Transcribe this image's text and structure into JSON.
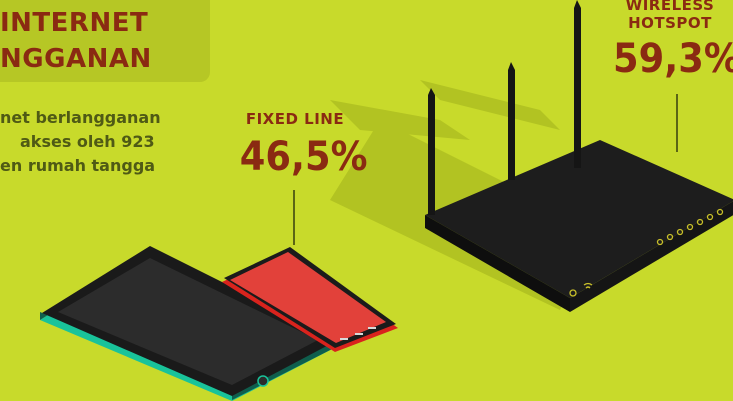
{
  "title": {
    "line1": "INTERNET",
    "line2": "NGGANAN"
  },
  "description": {
    "line1": "net berlangganan",
    "line2": "akses oleh 923",
    "line3": "en rumah tangga"
  },
  "fixed_line": {
    "label": "FIXED LINE",
    "percent": "46,5%"
  },
  "wireless_hotspot": {
    "label_line1": "WIRELESS",
    "label_line2": "HOTSPOT",
    "percent": "59,3%"
  },
  "colors": {
    "background": "#c8da2b",
    "title_band": "#b6c725",
    "text_dark": "#8a2a12",
    "device_dark": "#1c1c1c",
    "tablet_edge": "#19c39a",
    "phone_edge": "#d9231d"
  }
}
